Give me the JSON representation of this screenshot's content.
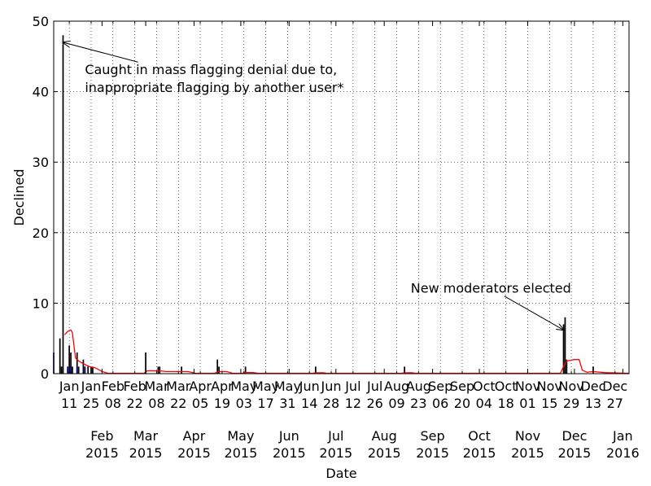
{
  "chart_data": {
    "type": "bar",
    "title": "",
    "xlabel": "Date",
    "ylabel": "Declined",
    "ylim": [
      0,
      50
    ],
    "xlim": [
      "2015-01-01",
      "2016-01-05"
    ],
    "grid": true,
    "y_ticks": [
      "0",
      "10",
      "20",
      "30",
      "40",
      "50"
    ],
    "x_ticks": [
      {
        "date": "2015-01-11",
        "month": "Jan",
        "day": "11"
      },
      {
        "date": "2015-01-25",
        "month": "Jan",
        "day": "25"
      },
      {
        "date": "2015-02-08",
        "month": "Feb",
        "day": "08"
      },
      {
        "date": "2015-02-22",
        "month": "Feb",
        "day": "22"
      },
      {
        "date": "2015-03-08",
        "month": "Mar",
        "day": "08"
      },
      {
        "date": "2015-03-22",
        "month": "Mar",
        "day": "22"
      },
      {
        "date": "2015-04-05",
        "month": "Apr",
        "day": "05"
      },
      {
        "date": "2015-04-19",
        "month": "Apr",
        "day": "19"
      },
      {
        "date": "2015-05-03",
        "month": "May",
        "day": "03"
      },
      {
        "date": "2015-05-17",
        "month": "May",
        "day": "17"
      },
      {
        "date": "2015-05-31",
        "month": "May",
        "day": "31"
      },
      {
        "date": "2015-06-14",
        "month": "Jun",
        "day": "14"
      },
      {
        "date": "2015-06-28",
        "month": "Jun",
        "day": "28"
      },
      {
        "date": "2015-07-12",
        "month": "Jul",
        "day": "12"
      },
      {
        "date": "2015-07-26",
        "month": "Jul",
        "day": "26"
      },
      {
        "date": "2015-08-09",
        "month": "Aug",
        "day": "09"
      },
      {
        "date": "2015-08-23",
        "month": "Aug",
        "day": "23"
      },
      {
        "date": "2015-09-06",
        "month": "Sep",
        "day": "06"
      },
      {
        "date": "2015-09-20",
        "month": "Sep",
        "day": "20"
      },
      {
        "date": "2015-10-04",
        "month": "Oct",
        "day": "04"
      },
      {
        "date": "2015-10-18",
        "month": "Oct",
        "day": "18"
      },
      {
        "date": "2015-11-01",
        "month": "Nov",
        "day": "01"
      },
      {
        "date": "2015-11-15",
        "month": "Nov",
        "day": "15"
      },
      {
        "date": "2015-11-29",
        "month": "Nov",
        "day": "29"
      },
      {
        "date": "2015-12-13",
        "month": "Dec",
        "day": "13"
      },
      {
        "date": "2015-12-27",
        "month": "Dec",
        "day": "27"
      }
    ],
    "major_ticks": [
      {
        "date": "2015-02-01",
        "month": "Feb",
        "year": "2015"
      },
      {
        "date": "2015-03-01",
        "month": "Mar",
        "year": "2015"
      },
      {
        "date": "2015-04-01",
        "month": "Apr",
        "year": "2015"
      },
      {
        "date": "2015-05-01",
        "month": "May",
        "year": "2015"
      },
      {
        "date": "2015-06-01",
        "month": "Jun",
        "year": "2015"
      },
      {
        "date": "2015-07-01",
        "month": "Jul",
        "year": "2015"
      },
      {
        "date": "2015-08-01",
        "month": "Aug",
        "year": "2015"
      },
      {
        "date": "2015-09-01",
        "month": "Sep",
        "year": "2015"
      },
      {
        "date": "2015-10-01",
        "month": "Oct",
        "year": "2015"
      },
      {
        "date": "2015-11-01",
        "month": "Nov",
        "year": "2015"
      },
      {
        "date": "2015-12-01",
        "month": "Dec",
        "year": "2015"
      },
      {
        "date": "2016-01-01",
        "month": "Jan",
        "year": "2016"
      }
    ],
    "bar_series": [
      {
        "color": "#000000",
        "points": [
          {
            "x": "2015-01-05",
            "y": 5
          },
          {
            "x": "2015-01-06",
            "y": 1
          },
          {
            "x": "2015-01-07",
            "y": 48
          },
          {
            "x": "2015-01-10",
            "y": 1
          },
          {
            "x": "2015-01-11",
            "y": 4
          },
          {
            "x": "2015-01-12",
            "y": 3
          },
          {
            "x": "2015-01-13",
            "y": 1
          },
          {
            "x": "2015-01-16",
            "y": 3
          },
          {
            "x": "2015-01-17",
            "y": 1
          },
          {
            "x": "2015-01-20",
            "y": 2
          },
          {
            "x": "2015-01-21",
            "y": 1
          },
          {
            "x": "2015-01-23",
            "y": 1
          },
          {
            "x": "2015-01-25",
            "y": 1
          },
          {
            "x": "2015-01-26",
            "y": 1
          },
          {
            "x": "2015-03-01",
            "y": 3
          },
          {
            "x": "2015-03-09",
            "y": 1
          },
          {
            "x": "2015-03-10",
            "y": 1
          },
          {
            "x": "2015-03-24",
            "y": 1
          },
          {
            "x": "2015-04-16",
            "y": 2
          },
          {
            "x": "2015-04-17",
            "y": 1
          },
          {
            "x": "2015-05-04",
            "y": 1
          },
          {
            "x": "2015-06-18",
            "y": 1
          },
          {
            "x": "2015-08-14",
            "y": 1
          },
          {
            "x": "2015-11-24",
            "y": 7
          },
          {
            "x": "2015-11-25",
            "y": 8
          },
          {
            "x": "2015-11-26",
            "y": 2
          },
          {
            "x": "2015-12-13",
            "y": 1
          }
        ]
      },
      {
        "color": "#00007f",
        "points": [
          {
            "x": "2015-01-01",
            "y": 3
          },
          {
            "x": "2015-01-10",
            "y": 1
          },
          {
            "x": "2015-01-12",
            "y": 1
          },
          {
            "x": "2015-01-16",
            "y": 1
          },
          {
            "x": "2015-01-21",
            "y": 1
          }
        ]
      }
    ],
    "line_series": [
      {
        "color": "#ff0000",
        "points": [
          {
            "x": "2015-01-08",
            "y": 5.5
          },
          {
            "x": "2015-01-10",
            "y": 6.0
          },
          {
            "x": "2015-01-12",
            "y": 6.2
          },
          {
            "x": "2015-01-13",
            "y": 5.8
          },
          {
            "x": "2015-01-15",
            "y": 2.2
          },
          {
            "x": "2015-01-17",
            "y": 1.8
          },
          {
            "x": "2015-01-20",
            "y": 1.4
          },
          {
            "x": "2015-01-24",
            "y": 1.0
          },
          {
            "x": "2015-01-28",
            "y": 0.8
          },
          {
            "x": "2015-02-01",
            "y": 0.3
          },
          {
            "x": "2015-02-05",
            "y": 0.05
          },
          {
            "x": "2015-02-28",
            "y": 0.05
          },
          {
            "x": "2015-03-02",
            "y": 0.4
          },
          {
            "x": "2015-03-10",
            "y": 0.4
          },
          {
            "x": "2015-03-14",
            "y": 0.3
          },
          {
            "x": "2015-03-28",
            "y": 0.3
          },
          {
            "x": "2015-04-02",
            "y": 0.05
          },
          {
            "x": "2015-04-14",
            "y": 0.05
          },
          {
            "x": "2015-04-17",
            "y": 0.3
          },
          {
            "x": "2015-04-22",
            "y": 0.3
          },
          {
            "x": "2015-04-26",
            "y": 0.05
          },
          {
            "x": "2015-05-02",
            "y": 0.05
          },
          {
            "x": "2015-05-04",
            "y": 0.15
          },
          {
            "x": "2015-05-09",
            "y": 0.15
          },
          {
            "x": "2015-05-12",
            "y": 0.05
          },
          {
            "x": "2015-06-16",
            "y": 0.05
          },
          {
            "x": "2015-06-18",
            "y": 0.12
          },
          {
            "x": "2015-06-23",
            "y": 0.12
          },
          {
            "x": "2015-06-25",
            "y": 0.05
          },
          {
            "x": "2015-08-12",
            "y": 0.05
          },
          {
            "x": "2015-08-14",
            "y": 0.12
          },
          {
            "x": "2015-08-19",
            "y": 0.12
          },
          {
            "x": "2015-08-21",
            "y": 0.05
          },
          {
            "x": "2015-11-22",
            "y": 0.05
          },
          {
            "x": "2015-11-24",
            "y": 1.0
          },
          {
            "x": "2015-11-26",
            "y": 1.8
          },
          {
            "x": "2015-12-01",
            "y": 2.0
          },
          {
            "x": "2015-12-04",
            "y": 2.0
          },
          {
            "x": "2015-12-06",
            "y": 0.5
          },
          {
            "x": "2015-12-09",
            "y": 0.2
          },
          {
            "x": "2015-12-13",
            "y": 0.3
          },
          {
            "x": "2015-12-20",
            "y": 0.15
          },
          {
            "x": "2016-01-05",
            "y": 0.05
          }
        ]
      }
    ],
    "annotations": [
      {
        "lines": [
          "Caught in mass flagging denial due to,",
          "inappropriate flagging by another user*"
        ],
        "x": "2015-01-21",
        "y": 42.5,
        "arrow_to": {
          "x": "2015-01-07",
          "y": 47
        },
        "arrow_from": {
          "x": "2015-02-24",
          "y": 44.2
        }
      },
      {
        "lines": [
          "New moderators elected"
        ],
        "x": "2015-08-18",
        "y": 11.5,
        "arrow_to": {
          "x": "2015-11-24",
          "y": 6.2
        },
        "arrow_from": {
          "x": "2015-10-17",
          "y": 11
        }
      }
    ]
  }
}
